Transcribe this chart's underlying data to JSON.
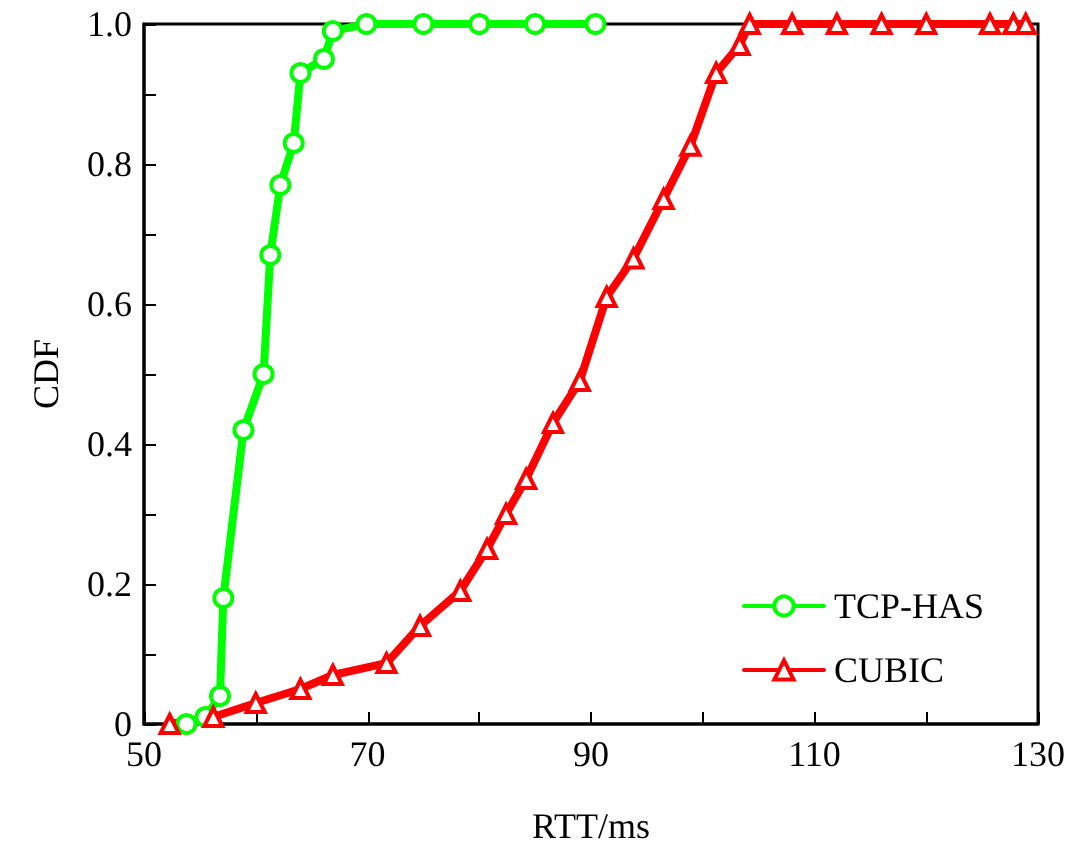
{
  "chart_data": {
    "type": "line",
    "xlabel": "RTT/ms",
    "ylabel": "CDF",
    "xlim": [
      50,
      130
    ],
    "ylim": [
      0,
      1
    ],
    "xticks": [
      50,
      {
        "value": 60,
        "label": null
      },
      70,
      {
        "value": 80,
        "label": null
      },
      90,
      {
        "value": 100,
        "label": null
      },
      110,
      {
        "value": 120,
        "label": null
      },
      130
    ],
    "yticks": [
      0,
      {
        "value": 0.1,
        "label": null
      },
      0.2,
      {
        "value": 0.3,
        "label": null
      },
      0.4,
      {
        "value": 0.5,
        "label": null
      },
      0.6,
      {
        "value": 0.7,
        "label": null
      },
      0.8,
      {
        "value": 0.9,
        "label": null
      },
      {
        "value": 1,
        "label": "1.0"
      }
    ],
    "grid": false,
    "legend": "bottom right",
    "series": [
      {
        "name": "TCP-HAS",
        "color": "#00ff00",
        "marker": "circle",
        "x": [
          53.8,
          55.5,
          56.8,
          57.1,
          58.9,
          60.7,
          61.3,
          62.2,
          63.4,
          64.0,
          66.1,
          66.9,
          69.9,
          75,
          80,
          85,
          90.4
        ],
        "values": [
          0,
          0.01,
          0.04,
          0.18,
          0.42,
          0.5,
          0.67,
          0.77,
          0.83,
          0.93,
          0.95,
          0.99,
          1,
          1,
          1,
          1,
          1
        ]
      },
      {
        "name": "CUBIC",
        "color": "#ff0000",
        "marker": "triangle",
        "x": [
          52.3,
          56.2,
          60,
          64,
          66.9,
          71.7,
          74.7,
          78.3,
          80.7,
          82.4,
          84.2,
          86.6,
          89.0,
          91.4,
          93.8,
          96.5,
          98.9,
          101.2,
          103.3,
          104.2,
          108,
          112,
          116,
          120,
          125.7,
          127.8,
          128.9
        ],
        "values": [
          0,
          0.01,
          0.03,
          0.05,
          0.07,
          0.087,
          0.14,
          0.19,
          0.25,
          0.3,
          0.35,
          0.43,
          0.49,
          0.61,
          0.665,
          0.75,
          0.826,
          0.93,
          0.97,
          1,
          1,
          1,
          1,
          1,
          1,
          1,
          1
        ]
      }
    ]
  }
}
